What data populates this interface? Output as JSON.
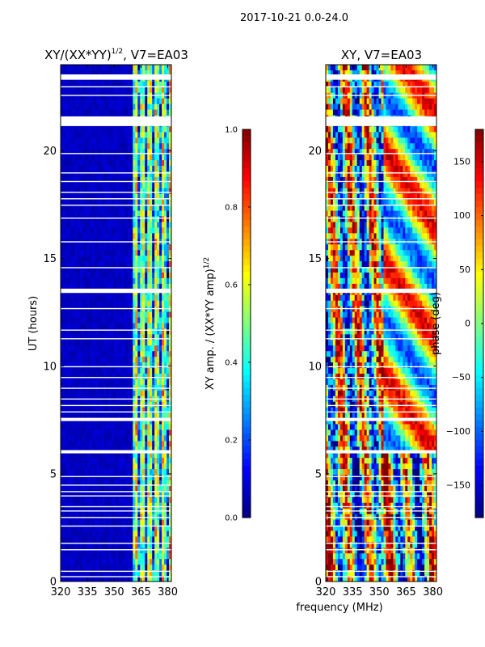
{
  "figure": {
    "suptitle": "2017-10-21 0.0-24.0",
    "shared_xlabel": "frequency (MHz)"
  },
  "colors": {
    "jet": [
      "#00007f",
      "#0000ff",
      "#007fff",
      "#00ffff",
      "#7fff7f",
      "#ffff00",
      "#ff7f00",
      "#ff0000",
      "#7f0000"
    ],
    "axes": "#000000",
    "gap": "#ffffff"
  },
  "chart_data": [
    {
      "type": "heatmap",
      "title_main": "XY/(XX*YY)",
      "title_sup": "1/2",
      "title_tail": ", V7=EA03",
      "xlabel": "",
      "ylabel": "UT (hours)",
      "xlim": [
        320,
        382
      ],
      "ylim": [
        0,
        24
      ],
      "xticks": [
        320,
        335,
        350,
        365,
        380
      ],
      "yticks": [
        0,
        5,
        10,
        15,
        20
      ],
      "flagged_ut_bands": [
        [
          23.3,
          23.55
        ],
        [
          21.15,
          21.6
        ],
        [
          13.4,
          13.6
        ],
        [
          7.45,
          7.6
        ],
        [
          5.95,
          6.1
        ]
      ],
      "colorbar": {
        "label_main": "XY amp. / (XX*YY amp)",
        "label_sup": "1/2",
        "range": [
          0.0,
          1.0
        ],
        "ticks": [
          "0.0",
          "0.2",
          "0.4",
          "0.6",
          "0.8",
          "1.0"
        ],
        "tick_values": [
          0.0,
          0.2,
          0.4,
          0.6,
          0.8,
          1.0
        ]
      }
    },
    {
      "type": "heatmap",
      "title": "XY, V7=EA03",
      "xlabel": "frequency (MHz)",
      "ylabel": "",
      "xlim": [
        320,
        382
      ],
      "ylim": [
        0,
        24
      ],
      "xticks": [
        320,
        335,
        350,
        365,
        380
      ],
      "yticks": [
        0,
        5,
        10,
        15,
        20
      ],
      "flagged_ut_bands": [
        [
          23.3,
          23.55
        ],
        [
          21.15,
          21.6
        ],
        [
          13.4,
          13.6
        ],
        [
          7.45,
          7.6
        ],
        [
          5.95,
          6.1
        ]
      ],
      "colorbar": {
        "label": "phase (deg)",
        "range": [
          -180,
          180
        ],
        "ticks": [
          "150",
          "100",
          "50",
          "0",
          "−50",
          "−100",
          "−150"
        ],
        "tick_values": [
          150,
          100,
          50,
          0,
          -50,
          -100,
          -150
        ]
      }
    }
  ]
}
